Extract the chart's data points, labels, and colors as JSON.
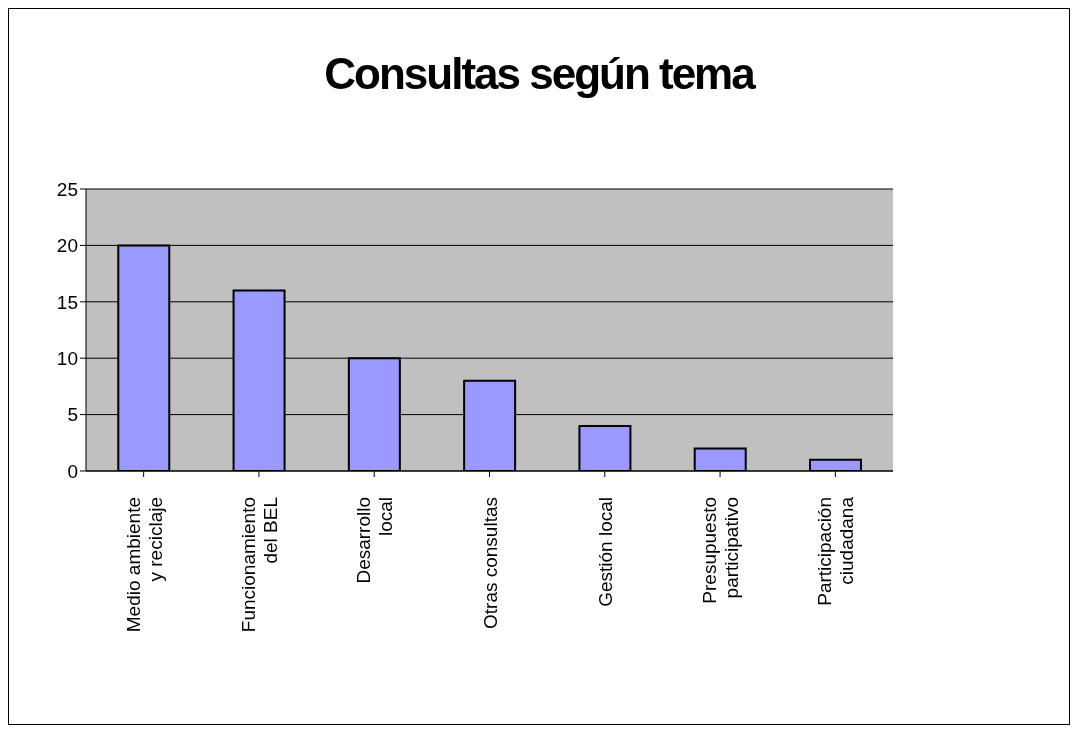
{
  "chart_data": {
    "type": "bar",
    "title": "Consultas según tema",
    "categories": [
      "Medio ambiente y reciclaje",
      "Funcionamiento del BEL",
      "Desarrollo local",
      "Otras consultas",
      "Gestión local",
      "Presupuesto participativo",
      "Participación ciudadana"
    ],
    "values": [
      20,
      16,
      10,
      8,
      4,
      2,
      1
    ],
    "color": "#9999ff",
    "ylim": [
      0,
      25
    ],
    "yticks": [
      0,
      5,
      10,
      15,
      20,
      25
    ],
    "grid": "y",
    "legend": false
  }
}
